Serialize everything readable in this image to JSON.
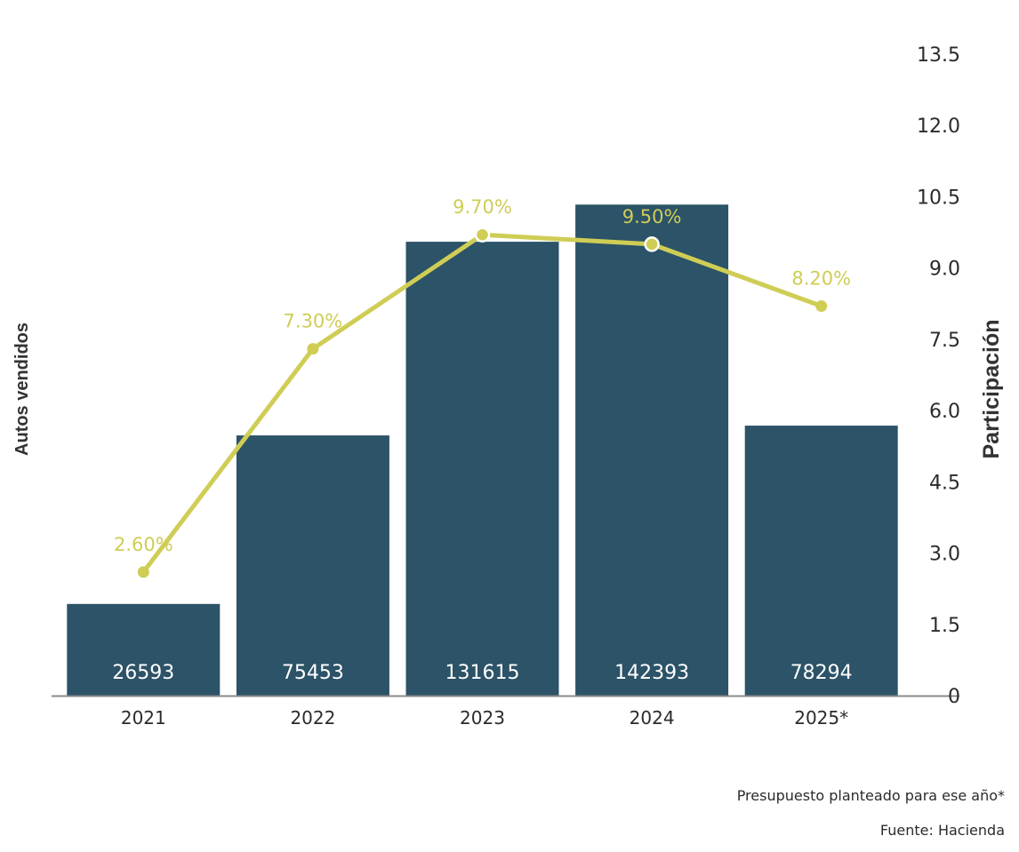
{
  "chart_data": {
    "type": "bar",
    "categories": [
      "2021",
      "2022",
      "2023",
      "2024",
      "2025*"
    ],
    "series": [
      {
        "name": "Autos vendidos",
        "kind": "bar",
        "axis": "left",
        "values": [
          26593,
          75453,
          131615,
          142393,
          78294
        ],
        "labels": [
          "26593",
          "75453",
          "131615",
          "142393",
          "78294"
        ],
        "color": "#2c5367"
      },
      {
        "name": "Participación",
        "kind": "line",
        "axis": "right",
        "values": [
          2.6,
          7.3,
          9.7,
          9.5,
          8.2
        ],
        "labels": [
          "2.60%",
          "7.30%",
          "9.70%",
          "9.50%",
          "8.20%"
        ],
        "color": "#cfcd55",
        "hollow_markers": [
          false,
          false,
          true,
          true,
          false
        ]
      }
    ],
    "ylabel_left": "Autos vendidos",
    "ylabel_right": "Participación",
    "y_left_range": [
      0,
      186000
    ],
    "y_right_range": [
      0,
      13.5
    ],
    "y_right_ticks": [
      "0",
      "1.5",
      "3.0",
      "4.5",
      "6.0",
      "7.5",
      "9.0",
      "10.5",
      "12.0",
      "13.5"
    ],
    "grid": false
  },
  "footnotes": {
    "note": "Presupuesto planteado para ese año*",
    "source": "Fuente: Hacienda"
  },
  "colors": {
    "axis_line": "#8a8a8a"
  }
}
